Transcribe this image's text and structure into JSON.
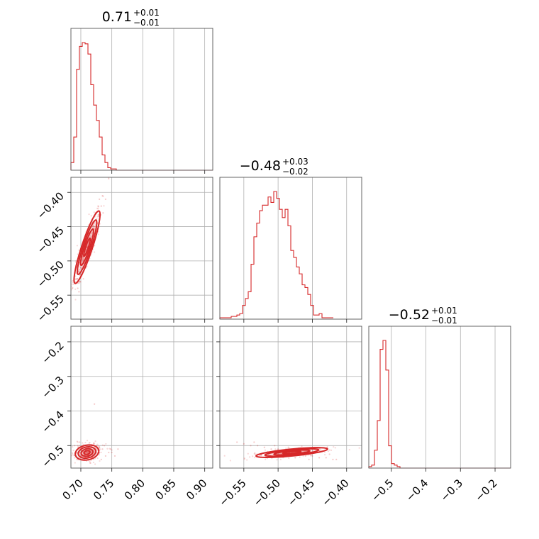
{
  "chart_data": {
    "type": "corner",
    "color": "#d62728",
    "parameters": [
      {
        "median": 0.71,
        "plus": 0.01,
        "minus": 0.01,
        "title_main": "0.71",
        "title_plus": "+0.01",
        "title_minus": "−0.01",
        "range": [
          0.684,
          0.913
        ],
        "ticks": [
          0.7,
          0.75,
          0.8,
          0.85,
          0.9
        ],
        "tick_labels": [
          "0.70",
          "0.75",
          "0.80",
          "0.85",
          "0.90"
        ],
        "hist": {
          "edges_start": 0.684,
          "bin_width": 0.00458,
          "counts": [
            6,
            26,
            79,
            97,
            100,
            99,
            91,
            67,
            51,
            39,
            26,
            12,
            6,
            2,
            1,
            1,
            0,
            0,
            0,
            0,
            0,
            0,
            0,
            0,
            0,
            0,
            0,
            0,
            0,
            0,
            0,
            0,
            0,
            0,
            0,
            0,
            0,
            0,
            0,
            0,
            0,
            0,
            0,
            0,
            0,
            0,
            0,
            0,
            0,
            0
          ]
        }
      },
      {
        "median": -0.48,
        "plus": 0.03,
        "minus": 0.02,
        "title_main": "−0.48",
        "title_plus": "+0.03",
        "title_minus": "−0.02",
        "range": [
          -0.585,
          -0.378
        ],
        "ticks": [
          -0.55,
          -0.5,
          -0.45,
          -0.4
        ],
        "tick_labels": [
          "−0.55",
          "−0.50",
          "−0.45",
          "−0.40"
        ],
        "hist": {
          "edges_start": -0.585,
          "bin_width": 0.00414,
          "counts": [
            1,
            1,
            1,
            1,
            2,
            2,
            3,
            4,
            10,
            15,
            20,
            40,
            60,
            70,
            79,
            83,
            83,
            89,
            85,
            93,
            88,
            80,
            74,
            80,
            68,
            50,
            45,
            38,
            33,
            25,
            23,
            18,
            10,
            3,
            3,
            4,
            1,
            1,
            1,
            1
          ]
        }
      },
      {
        "median": -0.52,
        "plus": 0.01,
        "minus": 0.01,
        "title_main": "−0.52",
        "title_plus": "+0.01",
        "title_minus": "−0.01",
        "range": [
          -0.565,
          -0.155
        ],
        "ticks": [
          -0.5,
          -0.4,
          -0.3,
          -0.2
        ],
        "tick_labels": [
          "−0.5",
          "−0.4",
          "−0.3",
          "−0.2"
        ],
        "hist": {
          "edges_start": -0.565,
          "bin_width": 0.0082,
          "counts": [
            1,
            2,
            12,
            32,
            80,
            86,
            66,
            15,
            3,
            2,
            1,
            0,
            0,
            0,
            0,
            0,
            0,
            0,
            0,
            0,
            0,
            0,
            0,
            0,
            0,
            0,
            0,
            0,
            0,
            0,
            0,
            0,
            0,
            0,
            0,
            0,
            0,
            0,
            0,
            0,
            0,
            0,
            0,
            0,
            0,
            0,
            0,
            0,
            0,
            0
          ]
        }
      }
    ],
    "pairs": [
      {
        "row": 1,
        "col": 0,
        "cov": [
          [
            0.00011,
            0.00025
          ],
          [
            0.00025,
            0.0007
          ]
        ],
        "points": [
          [
            0.7,
            -0.52
          ],
          [
            0.705,
            -0.5
          ],
          [
            0.71,
            -0.48
          ],
          [
            0.715,
            -0.47
          ],
          [
            0.72,
            -0.45
          ],
          [
            0.725,
            -0.44
          ],
          [
            0.728,
            -0.42
          ],
          [
            0.73,
            -0.41
          ],
          [
            0.735,
            -0.405
          ],
          [
            0.698,
            -0.53
          ],
          [
            0.695,
            -0.54
          ],
          [
            0.703,
            -0.49
          ],
          [
            0.712,
            -0.46
          ],
          [
            0.718,
            -0.44
          ],
          [
            0.724,
            -0.43
          ],
          [
            0.708,
            -0.51
          ],
          [
            0.716,
            -0.49
          ],
          [
            0.722,
            -0.46
          ],
          [
            0.697,
            -0.545
          ],
          [
            0.733,
            -0.42
          ],
          [
            0.74,
            -0.41
          ],
          [
            0.727,
            -0.455
          ],
          [
            0.713,
            -0.485
          ],
          [
            0.706,
            -0.475
          ],
          [
            0.701,
            -0.505
          ],
          [
            0.745,
            -0.38
          ],
          [
            0.736,
            -0.43
          ],
          [
            0.719,
            -0.475
          ],
          [
            0.711,
            -0.5
          ],
          [
            0.729,
            -0.435
          ]
        ]
      },
      {
        "row": 2,
        "col": 0,
        "cov": [
          [
            9e-05,
            2e-05
          ],
          [
            2e-05,
            0.00012
          ]
        ],
        "points": [
          [
            0.695,
            -0.5
          ],
          [
            0.7,
            -0.51
          ],
          [
            0.705,
            -0.52
          ],
          [
            0.71,
            -0.51
          ],
          [
            0.715,
            -0.52
          ],
          [
            0.72,
            -0.52
          ],
          [
            0.725,
            -0.53
          ],
          [
            0.73,
            -0.52
          ],
          [
            0.735,
            -0.51
          ],
          [
            0.74,
            -0.53
          ],
          [
            0.745,
            -0.52
          ],
          [
            0.75,
            -0.52
          ],
          [
            0.755,
            -0.53
          ],
          [
            0.76,
            -0.51
          ],
          [
            0.69,
            -0.5
          ],
          [
            0.698,
            -0.49
          ],
          [
            0.708,
            -0.5
          ],
          [
            0.718,
            -0.5
          ],
          [
            0.728,
            -0.51
          ],
          [
            0.738,
            -0.5
          ],
          [
            0.722,
            -0.38
          ],
          [
            0.712,
            -0.53
          ],
          [
            0.702,
            -0.53
          ],
          [
            0.733,
            -0.54
          ],
          [
            0.748,
            -0.51
          ]
        ]
      },
      {
        "row": 2,
        "col": 1,
        "cov": [
          [
            0.00068,
            0.00013
          ],
          [
            0.00013,
            5e-05
          ]
        ],
        "points": [
          [
            -0.55,
            -0.495
          ],
          [
            -0.54,
            -0.5
          ],
          [
            -0.53,
            -0.5
          ],
          [
            -0.52,
            -0.505
          ],
          [
            -0.51,
            -0.51
          ],
          [
            -0.5,
            -0.51
          ],
          [
            -0.49,
            -0.515
          ],
          [
            -0.48,
            -0.52
          ],
          [
            -0.47,
            -0.525
          ],
          [
            -0.46,
            -0.53
          ],
          [
            -0.45,
            -0.53
          ],
          [
            -0.44,
            -0.535
          ],
          [
            -0.43,
            -0.535
          ],
          [
            -0.42,
            -0.54
          ],
          [
            -0.415,
            -0.54
          ],
          [
            -0.56,
            -0.49
          ],
          [
            -0.535,
            -0.49
          ],
          [
            -0.505,
            -0.5
          ],
          [
            -0.485,
            -0.505
          ],
          [
            -0.465,
            -0.51
          ],
          [
            -0.445,
            -0.52
          ],
          [
            -0.425,
            -0.525
          ],
          [
            -0.495,
            -0.525
          ],
          [
            -0.475,
            -0.535
          ],
          [
            -0.455,
            -0.54
          ]
        ]
      }
    ]
  }
}
